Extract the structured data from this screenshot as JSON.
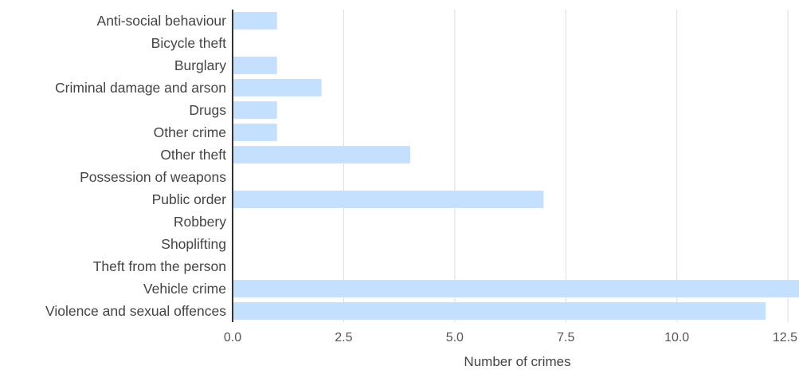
{
  "chart_data": {
    "type": "bar",
    "orientation": "horizontal",
    "categories": [
      "Anti-social behaviour",
      "Bicycle theft",
      "Burglary",
      "Criminal damage and arson",
      "Drugs",
      "Other crime",
      "Other theft",
      "Possession of weapons",
      "Public order",
      "Robbery",
      "Shoplifting",
      "Theft from the person",
      "Vehicle crime",
      "Violence and sexual offences"
    ],
    "values": [
      1,
      0,
      1,
      2,
      1,
      1,
      4,
      0,
      7,
      0,
      0,
      0,
      13,
      12
    ],
    "xlabel": "Number of crimes",
    "ylabel": "",
    "xlim": [
      0,
      12.75
    ],
    "xticks": [
      "0.0",
      "2.5",
      "5.0",
      "7.5",
      "10.0",
      "12.5"
    ],
    "xtick_values": [
      0,
      2.5,
      5,
      7.5,
      10,
      12.5
    ],
    "grid": "vertical",
    "bar_color": "#c5e0ff",
    "grid_color": "#dddddd",
    "axis_color": "#333333"
  }
}
